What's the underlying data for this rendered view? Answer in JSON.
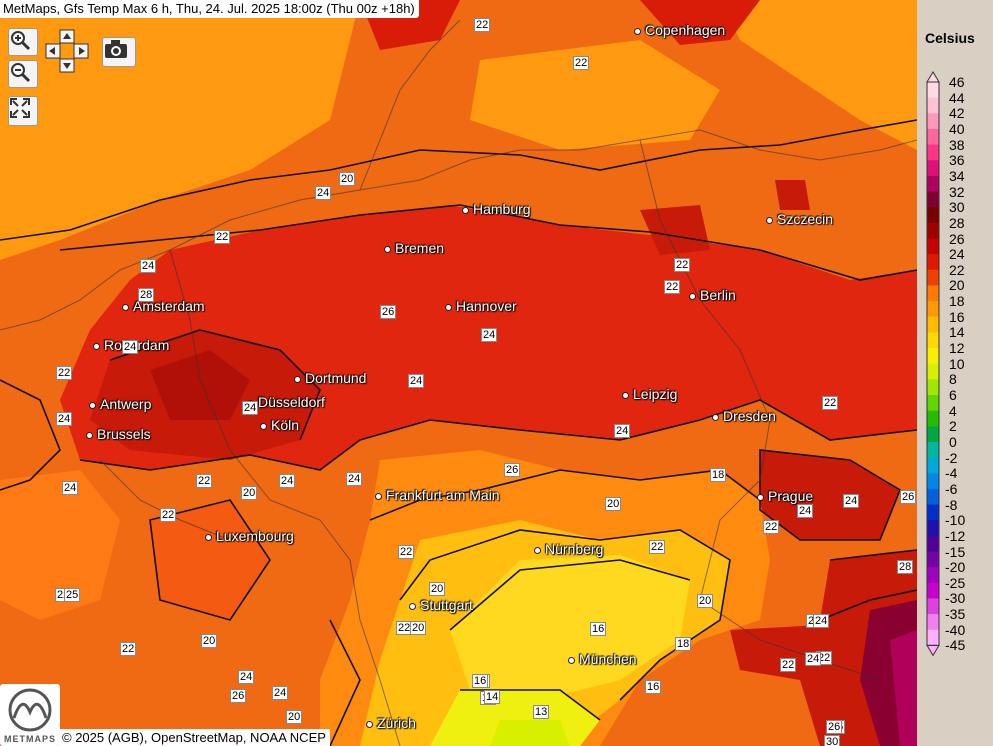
{
  "title": "MetMaps, Gfs Temp Max 6 h, Thu, 24. Jul. 2025 18:00z (Thu 00z +18h)",
  "credit": "© 2025 (AGB), OpenStreetMap, NOAA NCEP",
  "logo_text": "METMAPS",
  "legend": {
    "unit": "Celsius",
    "levels": [
      "46",
      "44",
      "42",
      "40",
      "38",
      "36",
      "34",
      "32",
      "30",
      "28",
      "26",
      "24",
      "22",
      "20",
      "18",
      "16",
      "14",
      "12",
      "10",
      "8",
      "6",
      "4",
      "2",
      "0",
      "-2",
      "-4",
      "-6",
      "-8",
      "-10",
      "-12",
      "-15",
      "-20",
      "-25",
      "-30",
      "-35",
      "-40",
      "-45"
    ],
    "colors": [
      "#ffd9e6",
      "#ffc0d6",
      "#ff99bb",
      "#ff6699",
      "#ff3388",
      "#e0107a",
      "#b00060",
      "#800030",
      "#7a0000",
      "#a00000",
      "#c80000",
      "#e01800",
      "#f04000",
      "#ff7a00",
      "#ff9a00",
      "#ffbb00",
      "#ffd800",
      "#f8f000",
      "#d8f000",
      "#a0e800",
      "#60d800",
      "#20c000",
      "#00a840",
      "#00b8a0",
      "#00a8d8",
      "#0088e8",
      "#0060e0",
      "#0030c8",
      "#2010b0",
      "#500098",
      "#7800a8",
      "#a000c0",
      "#c800d0",
      "#e040e0",
      "#f080f0",
      "#ffb0ff"
    ]
  },
  "controls": {
    "zoom_in": "zoom-in",
    "zoom_out": "zoom-out",
    "pan": "pan",
    "camera": "camera",
    "fullscreen": "fullscreen"
  },
  "cities": [
    {
      "name": "Copenhagen"
    },
    {
      "name": "Hamburg"
    },
    {
      "name": "Szczecin"
    },
    {
      "name": "Bremen"
    },
    {
      "name": "Berlin"
    },
    {
      "name": "Amsterdam"
    },
    {
      "name": "Hannover"
    },
    {
      "name": "Rotterdam"
    },
    {
      "name": "Dortmund"
    },
    {
      "name": "Leipzig"
    },
    {
      "name": "Antwerp"
    },
    {
      "name": "Düsseldorf"
    },
    {
      "name": "Dresden"
    },
    {
      "name": "Brussels"
    },
    {
      "name": "Köln"
    },
    {
      "name": "Frankfurt am Main"
    },
    {
      "name": "Prague"
    },
    {
      "name": "Luxembourg"
    },
    {
      "name": "Nürnberg"
    },
    {
      "name": "Stuttgart"
    },
    {
      "name": "München"
    },
    {
      "name": "Zürich"
    }
  ],
  "contour_labels": [
    "22",
    "22",
    "20",
    "24",
    "22",
    "24",
    "28",
    "22",
    "24",
    "26",
    "24",
    "24",
    "22",
    "22",
    "24",
    "24",
    "22",
    "24",
    "24",
    "26",
    "24",
    "26",
    "22",
    "20",
    "24",
    "24",
    "20",
    "22",
    "22",
    "24",
    "22",
    "18",
    "22",
    "25",
    "20",
    "22",
    "24",
    "24",
    "26",
    "22",
    "16",
    "20",
    "22",
    "28",
    "20",
    "18",
    "16",
    "20",
    "22",
    "16",
    "24",
    "22",
    "16",
    "22",
    "14",
    "24",
    "20",
    "26",
    "24",
    "16",
    "14",
    "13",
    "20",
    "26",
    "30"
  ]
}
